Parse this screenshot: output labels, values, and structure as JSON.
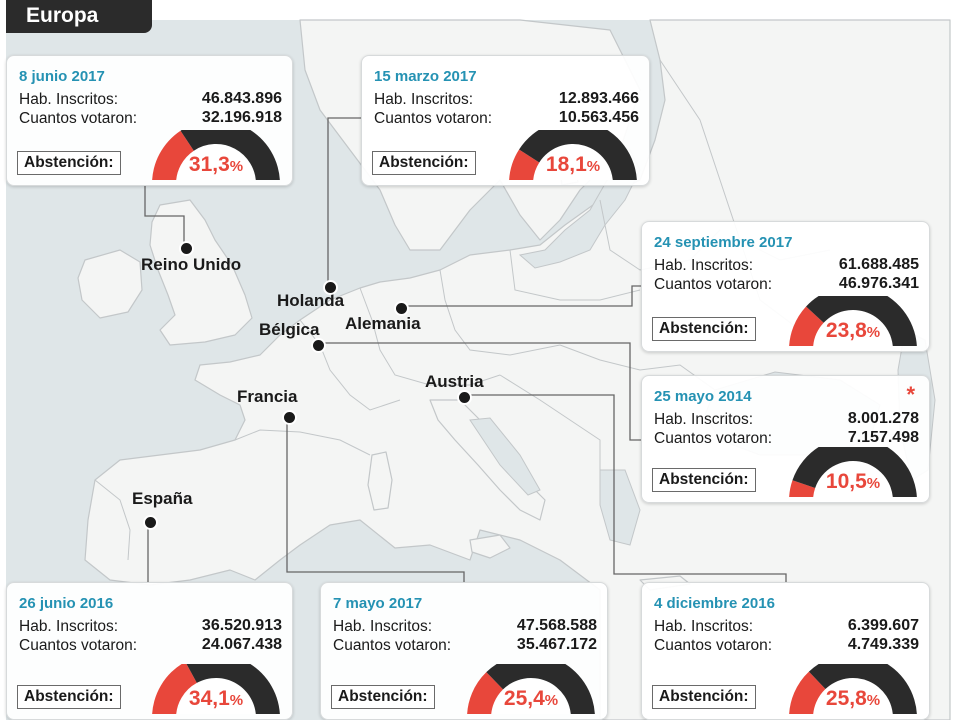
{
  "title": "Europa",
  "colors": {
    "accent": "#e8473b",
    "date": "#2592b3",
    "gauge_dark": "#2b2b2b",
    "sea": "#dfe6e8",
    "land": "#f3f4f3",
    "border": "#c3c7c9",
    "connector": "#666666"
  },
  "countries": [
    {
      "id": "reino-unido",
      "label": "Reino Unido"
    },
    {
      "id": "holanda",
      "label": "Holanda"
    },
    {
      "id": "alemania",
      "label": "Alemania"
    },
    {
      "id": "belgica",
      "label": "Bélgica"
    },
    {
      "id": "austria",
      "label": "Austria"
    },
    {
      "id": "francia",
      "label": "Francia"
    },
    {
      "id": "espana",
      "label": "España"
    }
  ],
  "cards": [
    {
      "id": "reino-unido",
      "date": "8 junio 2017",
      "inscritos_label": "Hab. Inscritos:",
      "inscritos": "46.843.896",
      "votaron_label": "Cuantos votaron:",
      "votaron": "32.196.918",
      "abstencion_label": "Abstención:",
      "abstencion_value": "31,3",
      "abstencion_unit": "%",
      "abstencion_fraction": 0.313,
      "star": ""
    },
    {
      "id": "holanda",
      "date": "15 marzo 2017",
      "inscritos_label": "Hab. Inscritos:",
      "inscritos": "12.893.466",
      "votaron_label": "Cuantos votaron:",
      "votaron": "10.563.456",
      "abstencion_label": "Abstención:",
      "abstencion_value": "18,1",
      "abstencion_unit": "%",
      "abstencion_fraction": 0.181,
      "star": ""
    },
    {
      "id": "alemania",
      "date": "24 septiembre 2017",
      "inscritos_label": "Hab. Inscritos:",
      "inscritos": "61.688.485",
      "votaron_label": "Cuantos votaron:",
      "votaron": "46.976.341",
      "abstencion_label": "Abstención:",
      "abstencion_value": "23,8",
      "abstencion_unit": "%",
      "abstencion_fraction": 0.238,
      "star": ""
    },
    {
      "id": "belgica",
      "date": "25 mayo 2014",
      "inscritos_label": "Hab. Inscritos:",
      "inscritos": "8.001.278",
      "votaron_label": "Cuantos votaron:",
      "votaron": "7.157.498",
      "abstencion_label": "Abstención:",
      "abstencion_value": "10,5",
      "abstencion_unit": "%",
      "abstencion_fraction": 0.105,
      "star": "*"
    },
    {
      "id": "espana",
      "date": "26 junio 2016",
      "inscritos_label": "Hab. Inscritos:",
      "inscritos": "36.520.913",
      "votaron_label": "Cuantos votaron:",
      "votaron": "24.067.438",
      "abstencion_label": "Abstención:",
      "abstencion_value": "34,1",
      "abstencion_unit": "%",
      "abstencion_fraction": 0.341,
      "star": ""
    },
    {
      "id": "francia",
      "date": "7 mayo 2017",
      "inscritos_label": "Hab. Inscritos:",
      "inscritos": "47.568.588",
      "votaron_label": "Cuantos votaron:",
      "votaron": "35.467.172",
      "abstencion_label": "Abstención:",
      "abstencion_value": "25,4",
      "abstencion_unit": "%",
      "abstencion_fraction": 0.254,
      "star": ""
    },
    {
      "id": "austria",
      "date": "4 diciembre 2016",
      "inscritos_label": "Hab. Inscritos:",
      "inscritos": "6.399.607",
      "votaron_label": "Cuantos votaron:",
      "votaron": "4.749.339",
      "abstencion_label": "Abstención:",
      "abstencion_value": "25,8",
      "abstencion_unit": "%",
      "abstencion_fraction": 0.258,
      "star": ""
    }
  ]
}
